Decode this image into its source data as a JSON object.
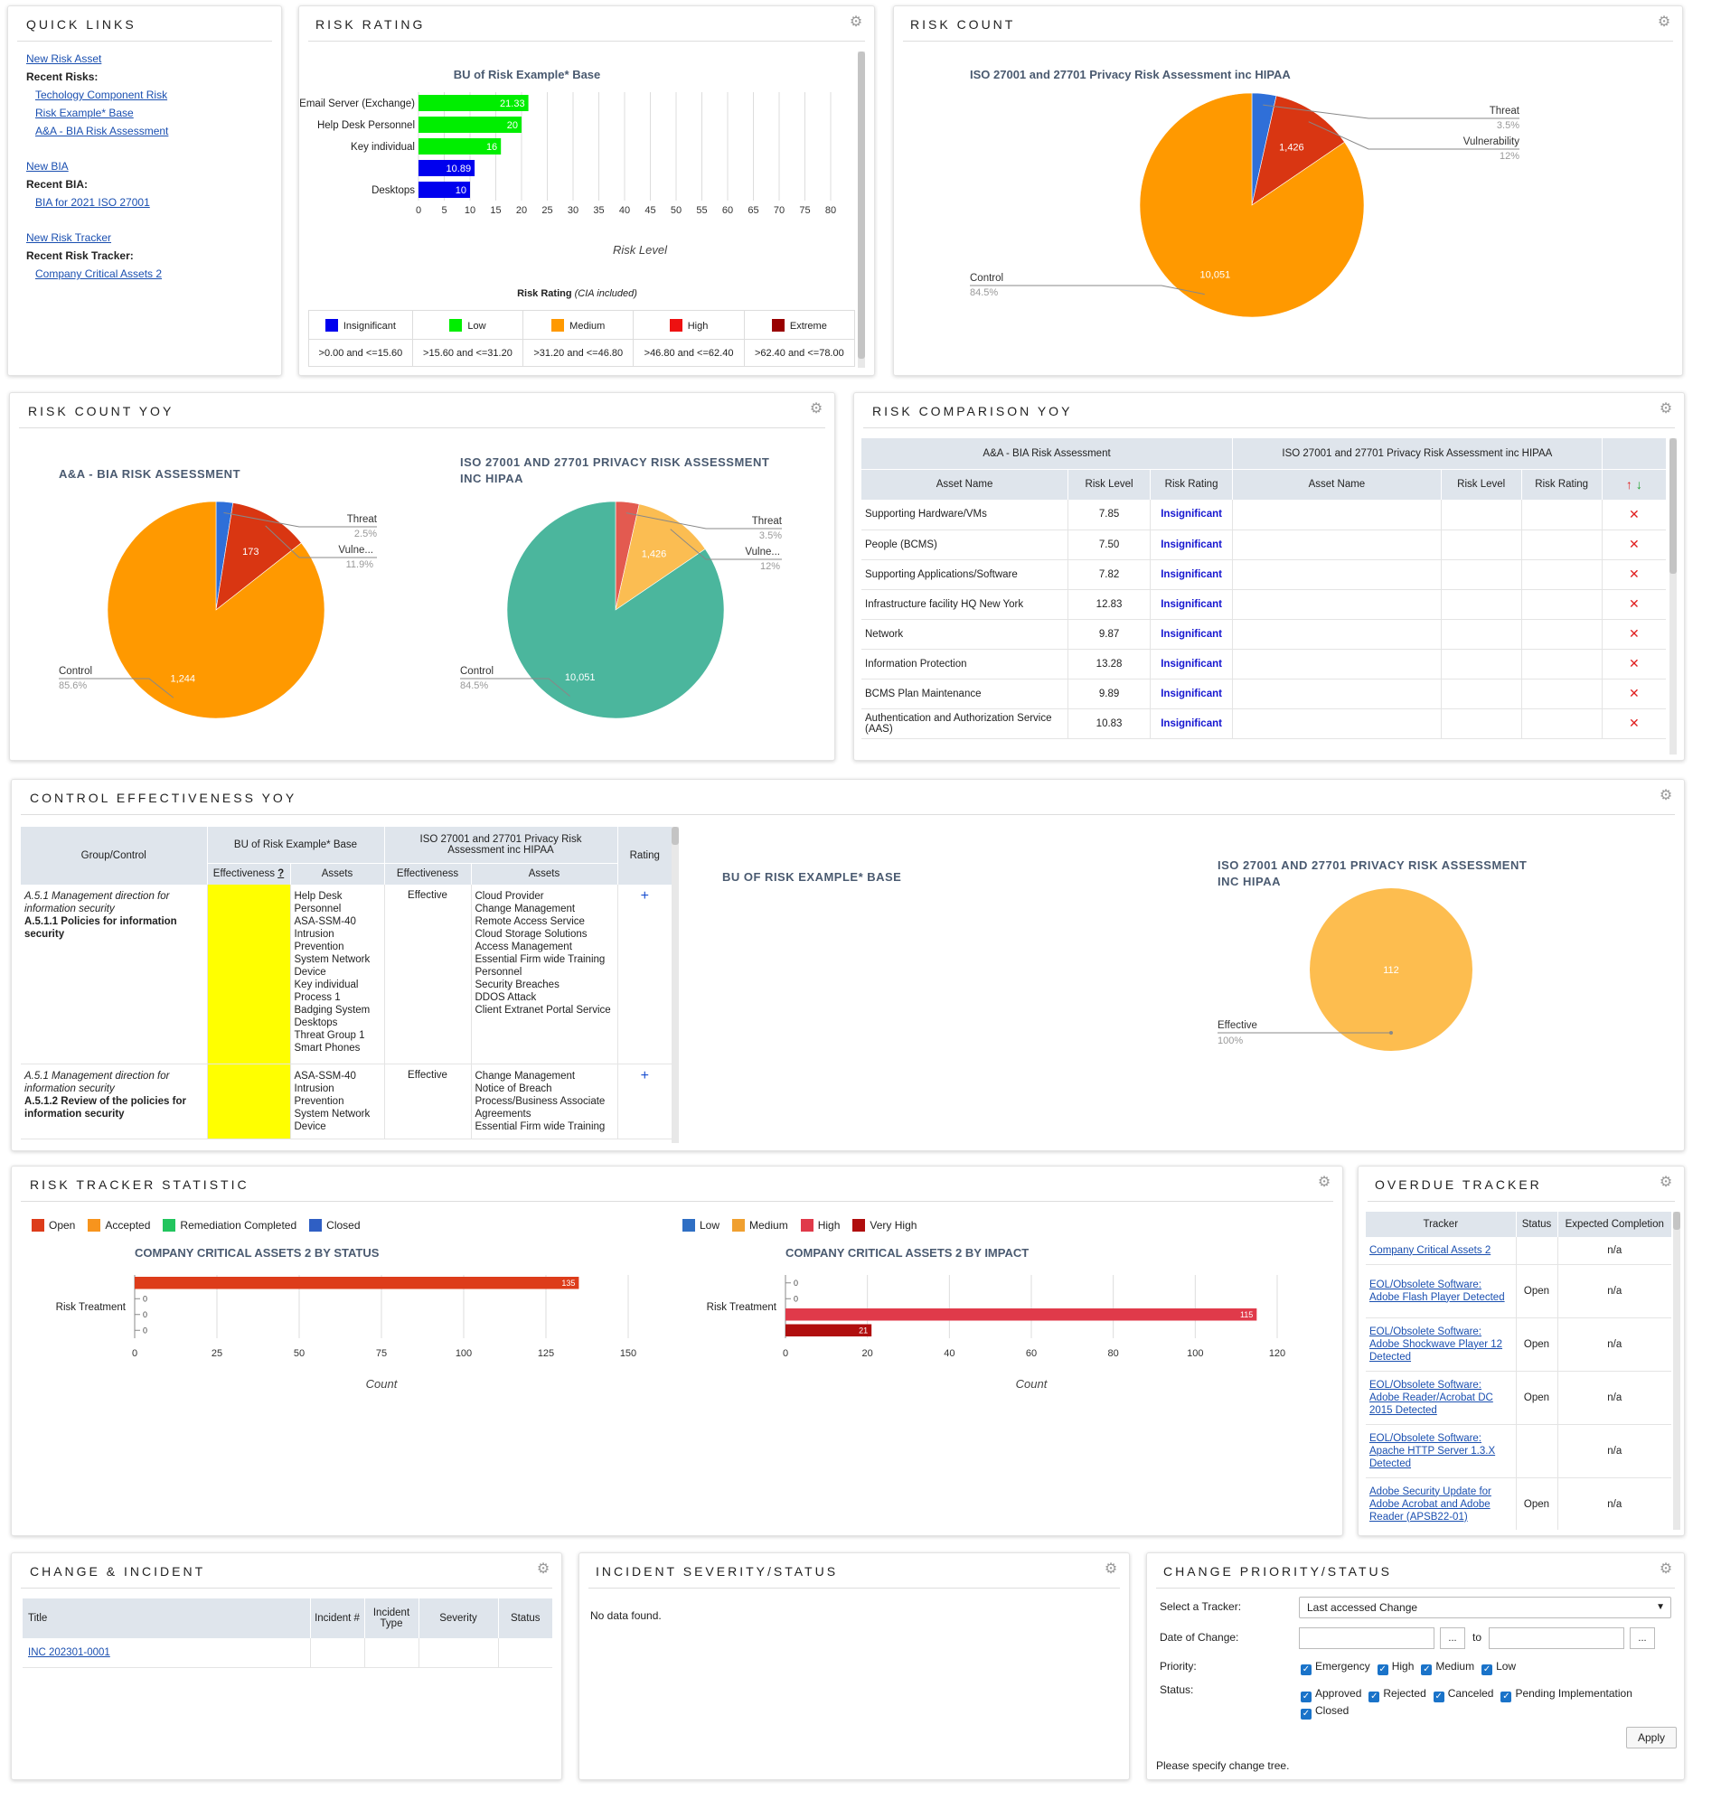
{
  "quick_links": {
    "title": "QUICK LINKS",
    "new_risk_asset": "New Risk Asset",
    "recent_risks_label": "Recent Risks:",
    "recent_risks": [
      "Techology Component Risk",
      "Risk Example* Base",
      "A&A - BIA Risk Assessment"
    ],
    "new_bia": "New BIA",
    "recent_bia_label": "Recent BIA:",
    "recent_bia": [
      "BIA for 2021 ISO 27001"
    ],
    "new_tracker": "New Risk Tracker",
    "recent_tracker_label": "Recent Risk Tracker:",
    "recent_tracker": [
      "Company Critical Assets 2"
    ]
  },
  "risk_rating": {
    "title": "RISK RATING",
    "chart_title": "BU of Risk Example* Base",
    "xlabel": "Risk Level",
    "legend_title": "Risk Rating",
    "legend_note": "(CIA included)",
    "levels": [
      {
        "name": "Insignificant",
        "color": "#0000ee",
        "range": ">0.00 and <=15.60"
      },
      {
        "name": "Low",
        "color": "#00ee00",
        "range": ">15.60 and <=31.20"
      },
      {
        "name": "Medium",
        "color": "#ff9900",
        "range": ">31.20 and <=46.80"
      },
      {
        "name": "High",
        "color": "#ee1111",
        "range": ">46.80 and <=62.40"
      },
      {
        "name": "Extreme",
        "color": "#990000",
        "range": ">62.40 and <=78.00"
      }
    ]
  },
  "risk_count": {
    "title": "RISK COUNT",
    "chart_title": "ISO 27001 and 27701 Privacy Risk Assessment inc HIPAA",
    "pie_labels": [
      {
        "name": "Threat",
        "pct": "3.5%"
      },
      {
        "name": "Vulnerability",
        "pct": "12%"
      },
      {
        "name": "Control",
        "pct": "84.5%"
      }
    ]
  },
  "risk_count_yoy": {
    "title": "RISK COUNT YOY",
    "left_title": "A&A - BIA RISK ASSESSMENT",
    "left_labels": [
      {
        "name": "Threat",
        "pct": "2.5%"
      },
      {
        "name": "Vulne...",
        "pct": "11.9%"
      },
      {
        "name": "Control",
        "pct": "85.6%"
      }
    ],
    "right_title_1": "ISO 27001 AND 27701 PRIVACY RISK ASSESSMENT",
    "right_title_2": "INC HIPAA",
    "right_labels": [
      {
        "name": "Threat",
        "pct": "3.5%"
      },
      {
        "name": "Vulne...",
        "pct": "12%"
      },
      {
        "name": "Control",
        "pct": "84.5%"
      }
    ]
  },
  "risk_comparison": {
    "title": "RISK COMPARISON YOY",
    "group1": "A&A - BIA Risk Assessment",
    "group2": "ISO 27001 and 27701 Privacy Risk Assessment inc HIPAA",
    "col_asset": "Asset Name",
    "col_level": "Risk Level",
    "col_rating": "Risk Rating",
    "rows": [
      {
        "asset": "Supporting Hardware/VMs",
        "level": "7.85",
        "rating": "Insignificant"
      },
      {
        "asset": "People (BCMS)",
        "level": "7.50",
        "rating": "Insignificant"
      },
      {
        "asset": "Supporting Applications/Software",
        "level": "7.82",
        "rating": "Insignificant"
      },
      {
        "asset": "Infrastructure facility HQ New York",
        "level": "12.83",
        "rating": "Insignificant"
      },
      {
        "asset": "Network",
        "level": "9.87",
        "rating": "Insignificant"
      },
      {
        "asset": "Information Protection",
        "level": "13.28",
        "rating": "Insignificant"
      },
      {
        "asset": "BCMS Plan Maintenance",
        "level": "9.89",
        "rating": "Insignificant"
      },
      {
        "asset": "Authentication and Authorization Service (AAS)",
        "level": "10.83",
        "rating": "Insignificant"
      }
    ]
  },
  "control_effectiveness": {
    "title": "CONTROL EFFECTIVENESS YOY",
    "col_group": "Group/Control",
    "col_bu": "BU of Risk Example* Base",
    "col_iso": "ISO 27001 and 27701 Privacy Risk Assessment inc HIPAA",
    "col_rating": "Rating",
    "col_eff": "Effectiveness",
    "col_eff_q": "?",
    "col_assets": "Assets",
    "col_eff2": "Effectiveness",
    "col_assets2": "Assets",
    "rows": [
      {
        "group": "A.5.1 Management direction for information security",
        "control": "A.5.1.1 Policies for information security",
        "bu_assets": [
          "Help Desk Personnel",
          "ASA-SSM-40 Intrusion Prevention System Network Device",
          "Key individual Process 1",
          "Badging System Desktops",
          "Threat Group 1",
          "Smart Phones"
        ],
        "eff2": "Effective",
        "iso_assets": [
          "Cloud Provider",
          "Change Management",
          "Remote Access Service",
          "Cloud Storage Solutions",
          "Access Management",
          "Essential Firm wide Training Personnel",
          "Security Breaches",
          "DDOS Attack",
          "Client Extranet Portal Service"
        ]
      },
      {
        "group": "A.5.1 Management direction for information security",
        "control": "A.5.1.2 Review of the policies for information security",
        "bu_assets": [
          "ASA-SSM-40 Intrusion Prevention System Network Device"
        ],
        "eff2": "Effective",
        "iso_assets": [
          "Change Management",
          "Notice of Breach Process/Business Associate Agreements",
          "Essential Firm wide Training"
        ]
      }
    ],
    "left_chart_title": "BU OF RISK EXAMPLE* BASE",
    "right_chart_title_1": "ISO 27001 AND 27701 PRIVACY RISK ASSESSMENT",
    "right_chart_title_2": "INC HIPAA",
    "pie_label": "Effective",
    "pie_pct": "100%"
  },
  "risk_tracker": {
    "title": "RISK TRACKER STATISTIC",
    "status_legend": [
      {
        "name": "Open",
        "color": "#dd3c1a"
      },
      {
        "name": "Accepted",
        "color": "#f7941d"
      },
      {
        "name": "Remediation Completed",
        "color": "#22c55e"
      },
      {
        "name": "Closed",
        "color": "#2f5fc4"
      }
    ],
    "impact_legend": [
      {
        "name": "Low",
        "color": "#2f6fc4"
      },
      {
        "name": "Medium",
        "color": "#f0a030"
      },
      {
        "name": "High",
        "color": "#e03a4a"
      },
      {
        "name": "Very High",
        "color": "#b00e0e"
      }
    ],
    "status_title": "COMPANY CRITICAL ASSETS 2 BY STATUS",
    "impact_title": "COMPANY CRITICAL ASSETS 2 BY IMPACT",
    "category": "Risk Treatment",
    "xlabel": "Count"
  },
  "overdue": {
    "title": "OVERDUE TRACKER",
    "col_tracker": "Tracker",
    "col_status": "Status",
    "col_expected": "Expected Completion",
    "rows": [
      {
        "tracker": "Company Critical Assets 2",
        "status": "",
        "expected": "n/a"
      },
      {
        "tracker": "EOL/Obsolete Software: Adobe Flash Player Detected",
        "status": "Open",
        "expected": "n/a"
      },
      {
        "tracker": "EOL/Obsolete Software: Adobe Shockwave Player 12 Detected",
        "status": "Open",
        "expected": "n/a"
      },
      {
        "tracker": "EOL/Obsolete Software: Adobe Reader/Acrobat DC 2015 Detected",
        "status": "Open",
        "expected": "n/a"
      },
      {
        "tracker": "EOL/Obsolete Software: Apache HTTP Server 1.3.X Detected",
        "status": "",
        "expected": "n/a"
      },
      {
        "tracker": "Adobe Security Update for Adobe Acrobat and Adobe Reader (APSB22-01)",
        "status": "Open",
        "expected": "n/a"
      }
    ]
  },
  "change_incident": {
    "title": "CHANGE & INCIDENT",
    "col_title": "Title",
    "col_incident": "Incident #",
    "col_type": "Incident Type",
    "col_severity": "Severity",
    "col_status": "Status",
    "rows": [
      {
        "title": "INC 202301-0001"
      }
    ]
  },
  "incident_severity": {
    "title": "INCIDENT SEVERITY/STATUS",
    "empty": "No data found."
  },
  "change_priority": {
    "title": "CHANGE PRIORITY/STATUS",
    "select_label": "Select a Tracker:",
    "select_value": "Last accessed Change",
    "date_label": "Date of Change:",
    "to": "to",
    "dots": "...",
    "priority_label": "Priority:",
    "priorities": [
      "Emergency",
      "High",
      "Medium",
      "Low"
    ],
    "status_label": "Status:",
    "statuses": [
      "Approved",
      "Rejected",
      "Canceled",
      "Pending Implementation",
      "Closed"
    ],
    "apply": "Apply",
    "footer": "Please specify change tree."
  },
  "chart_data": [
    {
      "type": "bar",
      "title": "BU of Risk Example* Base",
      "orientation": "horizontal",
      "categories": [
        "Email Server (Exchange)",
        "Help Desk Personnel",
        "Key individual",
        "",
        "Desktops"
      ],
      "values": [
        21.33,
        20,
        16,
        10.89,
        10
      ],
      "value_labels": [
        "21.33",
        "20",
        "16",
        "10.89",
        "10"
      ],
      "colors": [
        "#00ee00",
        "#00ee00",
        "#00ee00",
        "#0000ee",
        "#0000ee"
      ],
      "xlabel": "Risk Level",
      "xlim": [
        0,
        80
      ],
      "xticks": [
        0,
        5,
        10,
        15,
        20,
        25,
        30,
        35,
        40,
        45,
        50,
        55,
        60,
        65,
        70,
        75,
        80
      ]
    },
    {
      "type": "pie",
      "title": "ISO 27001 and 27701 Privacy Risk Assessment inc HIPAA",
      "labels": [
        "Threat",
        "Vulnerability",
        "Control"
      ],
      "values": [
        3.5,
        12,
        84.5
      ],
      "value_labels": [
        "",
        "1,426",
        "10,051"
      ],
      "colors": [
        "#2f6fd8",
        "#d93612",
        "#ff9900"
      ]
    },
    {
      "type": "pie",
      "title": "A&A - BIA RISK ASSESSMENT",
      "labels": [
        "Threat",
        "Vulne...",
        "Control"
      ],
      "values": [
        2.5,
        11.9,
        85.6
      ],
      "value_labels": [
        "",
        "173",
        "1,244"
      ],
      "colors": [
        "#2f6fd8",
        "#d93612",
        "#ff9900"
      ]
    },
    {
      "type": "pie",
      "title": "ISO 27001 AND 27701 PRIVACY RISK ASSESSMENT INC HIPAA",
      "labels": [
        "Threat",
        "Vulne...",
        "Control"
      ],
      "values": [
        3.5,
        12,
        84.5
      ],
      "value_labels": [
        "",
        "1,426",
        "10,051"
      ],
      "colors": [
        "#e35a50",
        "#fbbd52",
        "#4bb69d"
      ]
    },
    {
      "type": "pie",
      "title": "ISO 27001 AND 27701 PRIVACY RISK ASSESSMENT INC HIPAA",
      "labels": [
        "Effective"
      ],
      "values": [
        100
      ],
      "value_labels": [
        "112"
      ],
      "colors": [
        "#fdbd4f"
      ]
    },
    {
      "type": "bar",
      "title": "COMPANY CRITICAL ASSETS 2 BY STATUS",
      "orientation": "horizontal",
      "categories": [
        "Risk Treatment"
      ],
      "series": [
        {
          "name": "Open",
          "values": [
            135
          ]
        },
        {
          "name": "Accepted",
          "values": [
            0
          ]
        },
        {
          "name": "Remediation Completed",
          "values": [
            0
          ]
        },
        {
          "name": "Closed",
          "values": [
            0
          ]
        }
      ],
      "xlabel": "Count",
      "xlim": [
        0,
        150
      ],
      "xticks": [
        0,
        25,
        50,
        75,
        100,
        125,
        150
      ]
    },
    {
      "type": "bar",
      "title": "COMPANY CRITICAL ASSETS 2 BY IMPACT",
      "orientation": "horizontal",
      "categories": [
        "Risk Treatment"
      ],
      "series": [
        {
          "name": "Low",
          "values": [
            0
          ]
        },
        {
          "name": "Medium",
          "values": [
            0
          ]
        },
        {
          "name": "High",
          "values": [
            115
          ]
        },
        {
          "name": "Very High",
          "values": [
            21
          ]
        }
      ],
      "xlabel": "Count",
      "xlim": [
        0,
        120
      ],
      "xticks": [
        0,
        20,
        40,
        60,
        80,
        100,
        120
      ]
    }
  ]
}
